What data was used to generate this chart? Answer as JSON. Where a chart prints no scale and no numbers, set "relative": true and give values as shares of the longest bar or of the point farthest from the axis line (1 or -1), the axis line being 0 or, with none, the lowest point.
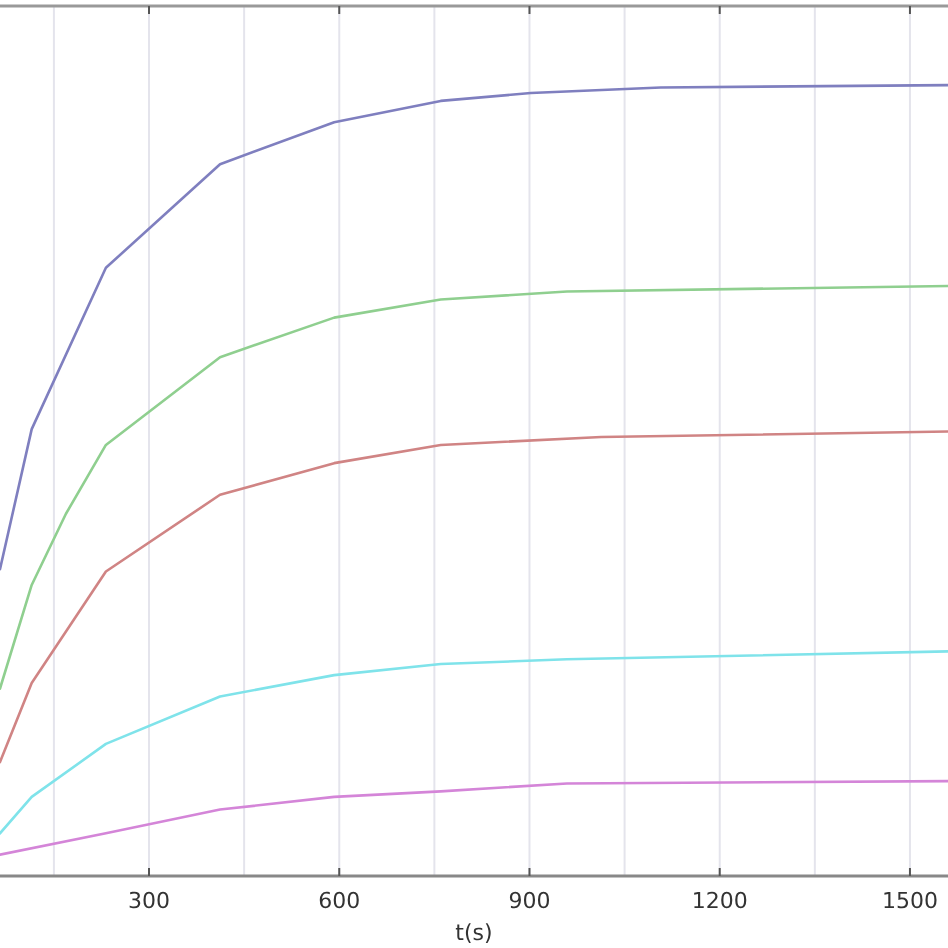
{
  "chart_data": {
    "type": "line",
    "xlabel": "t(s)",
    "relative": true,
    "xlim": [
      65,
      1560
    ],
    "xticks": [
      {
        "value": 150,
        "label": null
      },
      300,
      {
        "value": 450,
        "label": null
      },
      600,
      {
        "value": 750,
        "label": null
      },
      900,
      {
        "value": 1050,
        "label": null
      },
      1200,
      {
        "value": 1350,
        "label": null
      },
      1500
    ],
    "grid": "x",
    "line_style": "solid",
    "marker": "none",
    "series": [
      {
        "color": "#7f7fbf",
        "x": [
          65,
          115,
          232,
          412,
          592,
          760,
          902,
          1107,
          1560
        ],
        "values": [
          0.388,
          0.565,
          0.769,
          0.9,
          0.953,
          0.98,
          0.99,
          0.997,
          1
        ]
      },
      {
        "color": "#8fcf8f",
        "x": [
          65,
          115,
          169,
          232,
          412,
          592,
          760,
          959,
          1560
        ],
        "values": [
          0.237,
          0.368,
          0.458,
          0.545,
          0.656,
          0.706,
          0.729,
          0.739,
          0.746
        ]
      },
      {
        "color": "#d08484",
        "x": [
          65,
          115,
          232,
          412,
          592,
          760,
          1013,
          1560
        ],
        "values": [
          0.144,
          0.244,
          0.385,
          0.482,
          0.522,
          0.545,
          0.555,
          0.562
        ]
      },
      {
        "color": "#7fe3ea",
        "x": [
          65,
          115,
          232,
          412,
          592,
          760,
          959,
          1560
        ],
        "values": [
          0.054,
          0.1,
          0.167,
          0.227,
          0.254,
          0.268,
          0.274,
          0.284
        ]
      },
      {
        "color": "#d485d8",
        "x": [
          65,
          232,
          412,
          592,
          760,
          959,
          1560
        ],
        "values": [
          0.027,
          0.054,
          0.084,
          0.1,
          0.107,
          0.117,
          0.12
        ]
      }
    ]
  }
}
